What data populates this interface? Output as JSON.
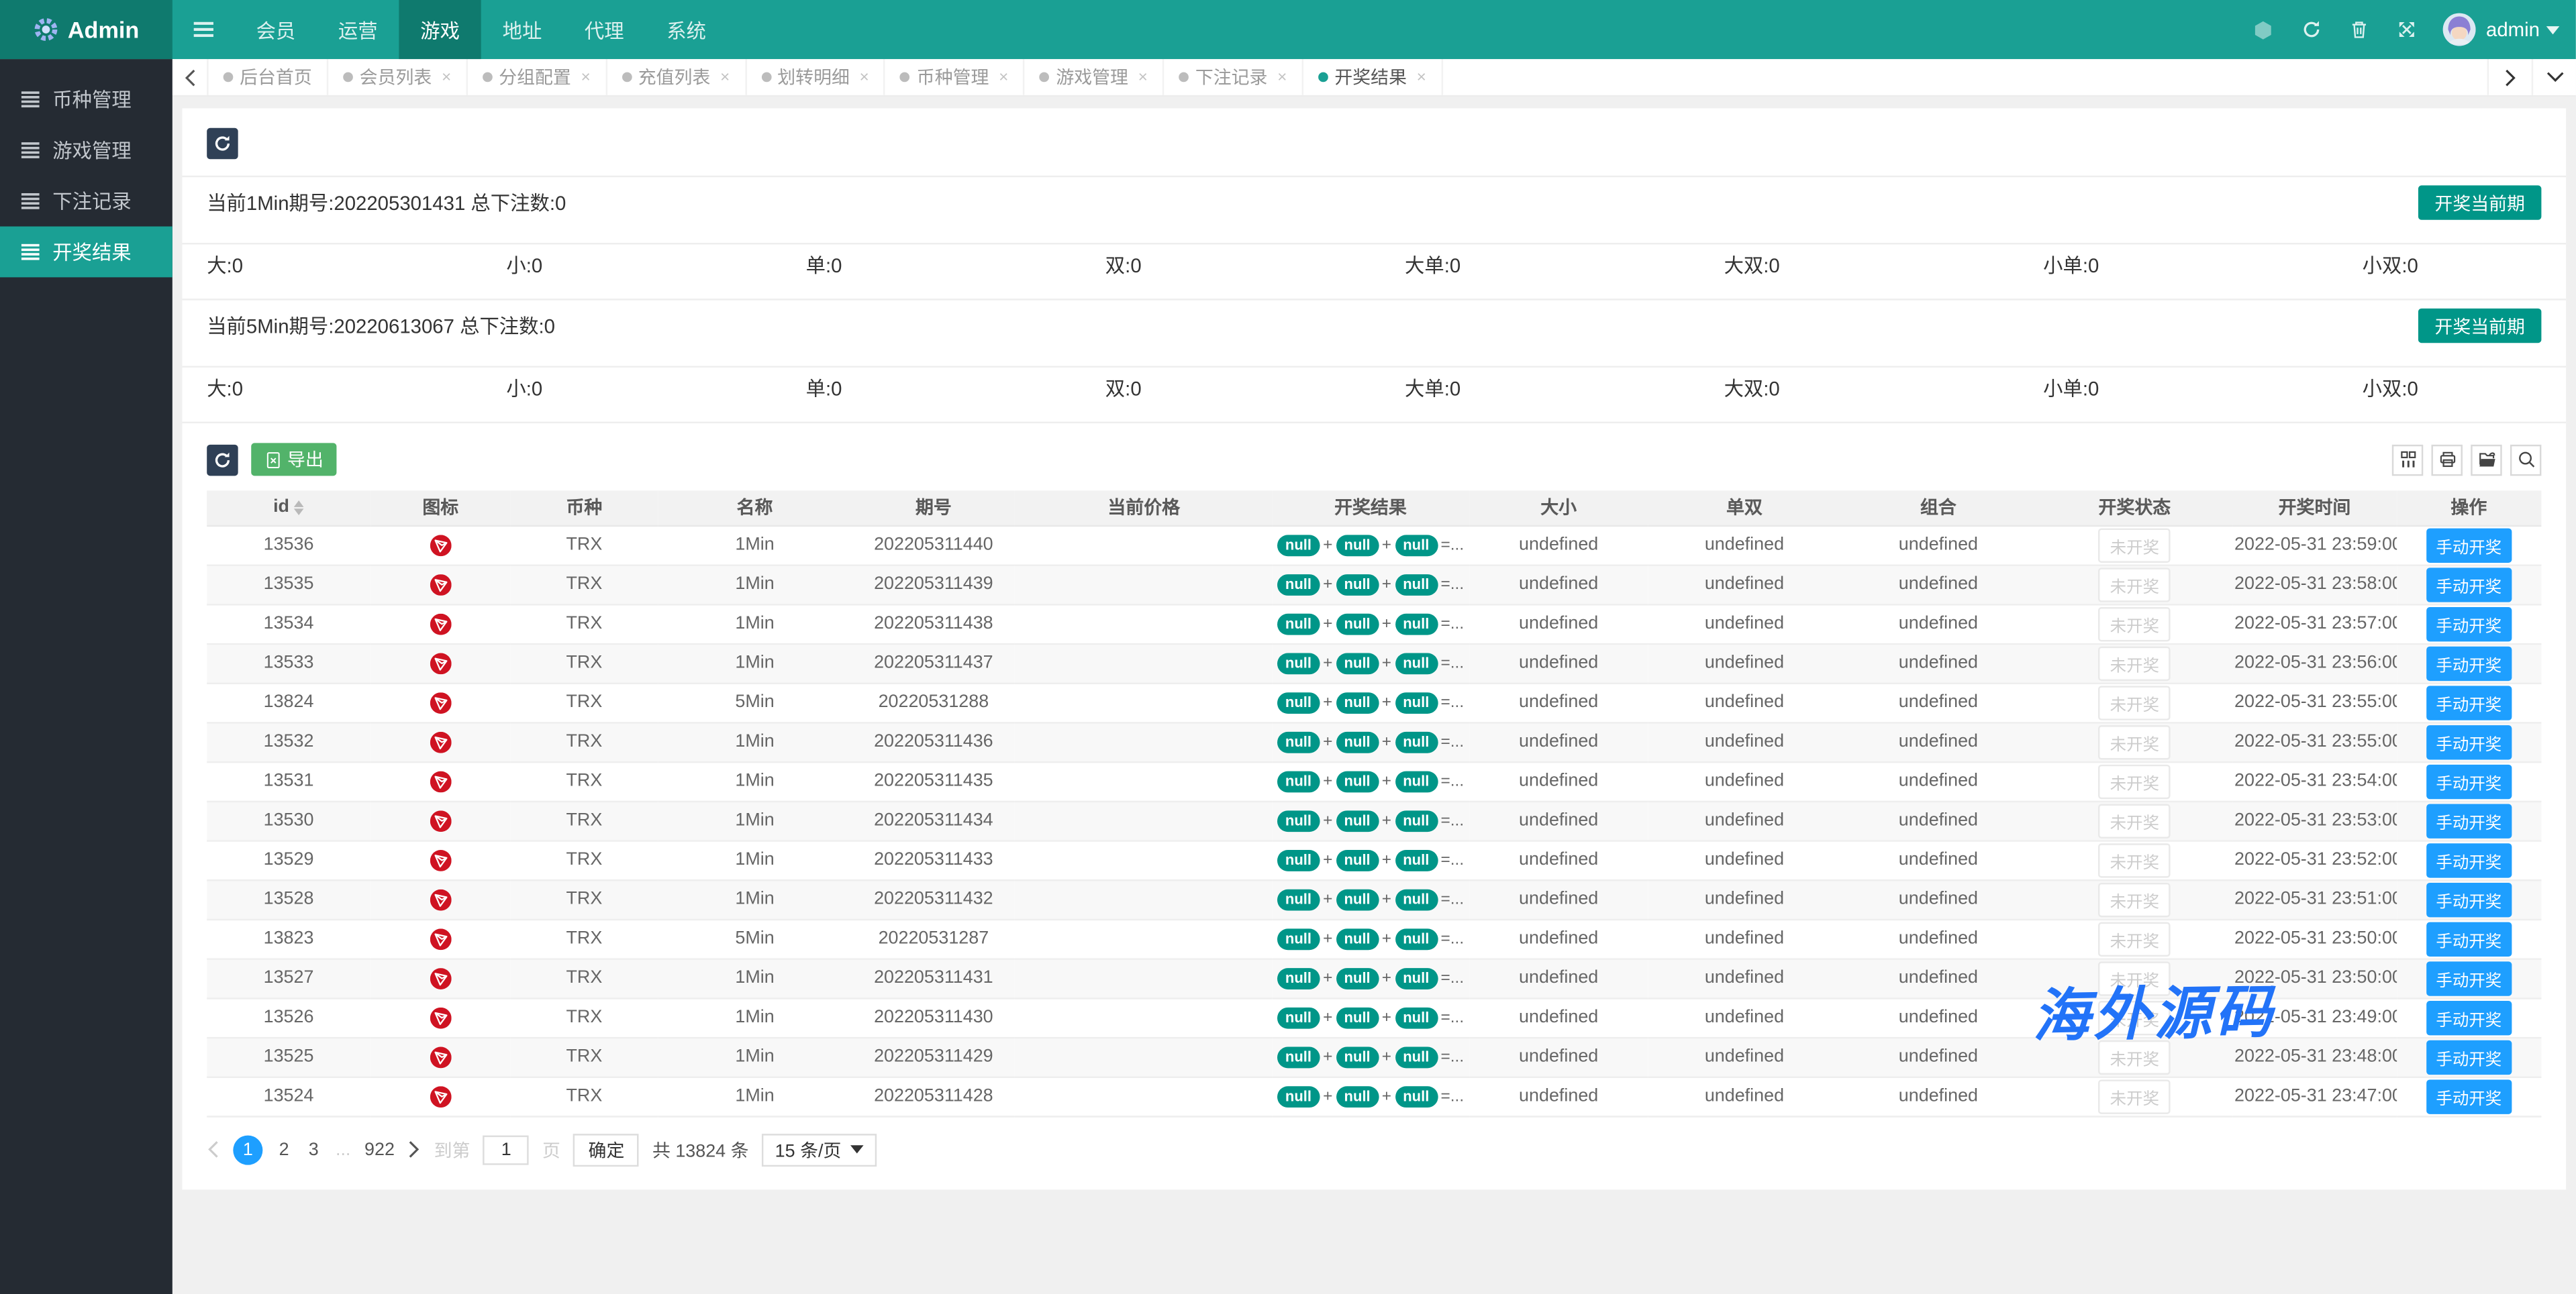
{
  "navbar": {
    "logo": "Admin",
    "menu": [
      {
        "label": "会员",
        "active": false
      },
      {
        "label": "运营",
        "active": false
      },
      {
        "label": "游戏",
        "active": true
      },
      {
        "label": "地址",
        "active": false
      },
      {
        "label": "代理",
        "active": false
      },
      {
        "label": "系统",
        "active": false
      }
    ],
    "user": "admin"
  },
  "sidebar": {
    "items": [
      {
        "label": "币种管理",
        "active": false
      },
      {
        "label": "游戏管理",
        "active": false
      },
      {
        "label": "下注记录",
        "active": false
      },
      {
        "label": "开奖结果",
        "active": true
      }
    ]
  },
  "tabs": [
    {
      "label": "后台首页",
      "closable": false,
      "active": false
    },
    {
      "label": "会员列表",
      "closable": true,
      "active": false
    },
    {
      "label": "分组配置",
      "closable": true,
      "active": false
    },
    {
      "label": "充值列表",
      "closable": true,
      "active": false
    },
    {
      "label": "划转明细",
      "closable": true,
      "active": false
    },
    {
      "label": "币种管理",
      "closable": true,
      "active": false
    },
    {
      "label": "游戏管理",
      "closable": true,
      "active": false
    },
    {
      "label": "下注记录",
      "closable": true,
      "active": false
    },
    {
      "label": "开奖结果",
      "closable": true,
      "active": true
    }
  ],
  "periods": [
    {
      "title": "当前1Min期号:202205301431 总下注数:0",
      "button": "开奖当前期",
      "stats": [
        {
          "label": "大",
          "value": "0"
        },
        {
          "label": "小",
          "value": "0"
        },
        {
          "label": "单",
          "value": "0"
        },
        {
          "label": "双",
          "value": "0"
        },
        {
          "label": "大单",
          "value": "0"
        },
        {
          "label": "大双",
          "value": "0"
        },
        {
          "label": "小单",
          "value": "0"
        },
        {
          "label": "小双",
          "value": "0"
        }
      ]
    },
    {
      "title": "当前5Min期号:20220613067 总下注数:0",
      "button": "开奖当前期",
      "stats": [
        {
          "label": "大",
          "value": "0"
        },
        {
          "label": "小",
          "value": "0"
        },
        {
          "label": "单",
          "value": "0"
        },
        {
          "label": "双",
          "value": "0"
        },
        {
          "label": "大单",
          "value": "0"
        },
        {
          "label": "大双",
          "value": "0"
        },
        {
          "label": "小单",
          "value": "0"
        },
        {
          "label": "小双",
          "value": "0"
        }
      ]
    }
  ],
  "toolbar": {
    "export_label": "导出"
  },
  "table": {
    "columns": [
      "id",
      "图标",
      "币种",
      "名称",
      "期号",
      "当前价格",
      "开奖结果",
      "大小",
      "单双",
      "组合",
      "开奖状态",
      "开奖时间",
      "操作"
    ],
    "result_pills": [
      "null",
      "null",
      "null"
    ],
    "result_suffix": "=...",
    "rows": [
      {
        "id": "13536",
        "coin": "TRX",
        "name": "1Min",
        "issue": "202205311440",
        "price": "",
        "size": "undefined",
        "parity": "undefined",
        "combo": "undefined",
        "status": "未开奖",
        "time": "2022-05-31 23:59:00",
        "action": "手动开奖"
      },
      {
        "id": "13535",
        "coin": "TRX",
        "name": "1Min",
        "issue": "202205311439",
        "price": "",
        "size": "undefined",
        "parity": "undefined",
        "combo": "undefined",
        "status": "未开奖",
        "time": "2022-05-31 23:58:00",
        "action": "手动开奖"
      },
      {
        "id": "13534",
        "coin": "TRX",
        "name": "1Min",
        "issue": "202205311438",
        "price": "",
        "size": "undefined",
        "parity": "undefined",
        "combo": "undefined",
        "status": "未开奖",
        "time": "2022-05-31 23:57:00",
        "action": "手动开奖"
      },
      {
        "id": "13533",
        "coin": "TRX",
        "name": "1Min",
        "issue": "202205311437",
        "price": "",
        "size": "undefined",
        "parity": "undefined",
        "combo": "undefined",
        "status": "未开奖",
        "time": "2022-05-31 23:56:00",
        "action": "手动开奖"
      },
      {
        "id": "13824",
        "coin": "TRX",
        "name": "5Min",
        "issue": "20220531288",
        "price": "",
        "size": "undefined",
        "parity": "undefined",
        "combo": "undefined",
        "status": "未开奖",
        "time": "2022-05-31 23:55:00",
        "action": "手动开奖"
      },
      {
        "id": "13532",
        "coin": "TRX",
        "name": "1Min",
        "issue": "202205311436",
        "price": "",
        "size": "undefined",
        "parity": "undefined",
        "combo": "undefined",
        "status": "未开奖",
        "time": "2022-05-31 23:55:00",
        "action": "手动开奖"
      },
      {
        "id": "13531",
        "coin": "TRX",
        "name": "1Min",
        "issue": "202205311435",
        "price": "",
        "size": "undefined",
        "parity": "undefined",
        "combo": "undefined",
        "status": "未开奖",
        "time": "2022-05-31 23:54:00",
        "action": "手动开奖"
      },
      {
        "id": "13530",
        "coin": "TRX",
        "name": "1Min",
        "issue": "202205311434",
        "price": "",
        "size": "undefined",
        "parity": "undefined",
        "combo": "undefined",
        "status": "未开奖",
        "time": "2022-05-31 23:53:00",
        "action": "手动开奖"
      },
      {
        "id": "13529",
        "coin": "TRX",
        "name": "1Min",
        "issue": "202205311433",
        "price": "",
        "size": "undefined",
        "parity": "undefined",
        "combo": "undefined",
        "status": "未开奖",
        "time": "2022-05-31 23:52:00",
        "action": "手动开奖"
      },
      {
        "id": "13528",
        "coin": "TRX",
        "name": "1Min",
        "issue": "202205311432",
        "price": "",
        "size": "undefined",
        "parity": "undefined",
        "combo": "undefined",
        "status": "未开奖",
        "time": "2022-05-31 23:51:00",
        "action": "手动开奖"
      },
      {
        "id": "13823",
        "coin": "TRX",
        "name": "5Min",
        "issue": "20220531287",
        "price": "",
        "size": "undefined",
        "parity": "undefined",
        "combo": "undefined",
        "status": "未开奖",
        "time": "2022-05-31 23:50:00",
        "action": "手动开奖"
      },
      {
        "id": "13527",
        "coin": "TRX",
        "name": "1Min",
        "issue": "202205311431",
        "price": "",
        "size": "undefined",
        "parity": "undefined",
        "combo": "undefined",
        "status": "未开奖",
        "time": "2022-05-31 23:50:00",
        "action": "手动开奖"
      },
      {
        "id": "13526",
        "coin": "TRX",
        "name": "1Min",
        "issue": "202205311430",
        "price": "",
        "size": "undefined",
        "parity": "undefined",
        "combo": "undefined",
        "status": "未开奖",
        "time": "2022-05-31 23:49:00",
        "action": "手动开奖"
      },
      {
        "id": "13525",
        "coin": "TRX",
        "name": "1Min",
        "issue": "202205311429",
        "price": "",
        "size": "undefined",
        "parity": "undefined",
        "combo": "undefined",
        "status": "未开奖",
        "time": "2022-05-31 23:48:00",
        "action": "手动开奖"
      },
      {
        "id": "13524",
        "coin": "TRX",
        "name": "1Min",
        "issue": "202205311428",
        "price": "",
        "size": "undefined",
        "parity": "undefined",
        "combo": "undefined",
        "status": "未开奖",
        "time": "2022-05-31 23:47:00",
        "action": "手动开奖"
      }
    ]
  },
  "pagination": {
    "pages": [
      "1",
      "2",
      "3",
      "...",
      "922"
    ],
    "current": "1",
    "goto_prefix": "到第",
    "goto_value": "1",
    "goto_suffix": "页",
    "confirm": "确定",
    "total": "共 13824 条",
    "per_page": "15 条/页"
  },
  "watermark": "海外源码",
  "colors": {
    "accent_teal": "#1aa094",
    "dark_teal": "#0f7a6e",
    "sidebar_bg": "#252b33",
    "button_teal": "#009688",
    "button_blue": "#1e9fff",
    "button_green": "#52b36a",
    "button_dark": "#2f4056",
    "trx_red": "#cf1322",
    "watermark_blue": "#2273f8"
  }
}
